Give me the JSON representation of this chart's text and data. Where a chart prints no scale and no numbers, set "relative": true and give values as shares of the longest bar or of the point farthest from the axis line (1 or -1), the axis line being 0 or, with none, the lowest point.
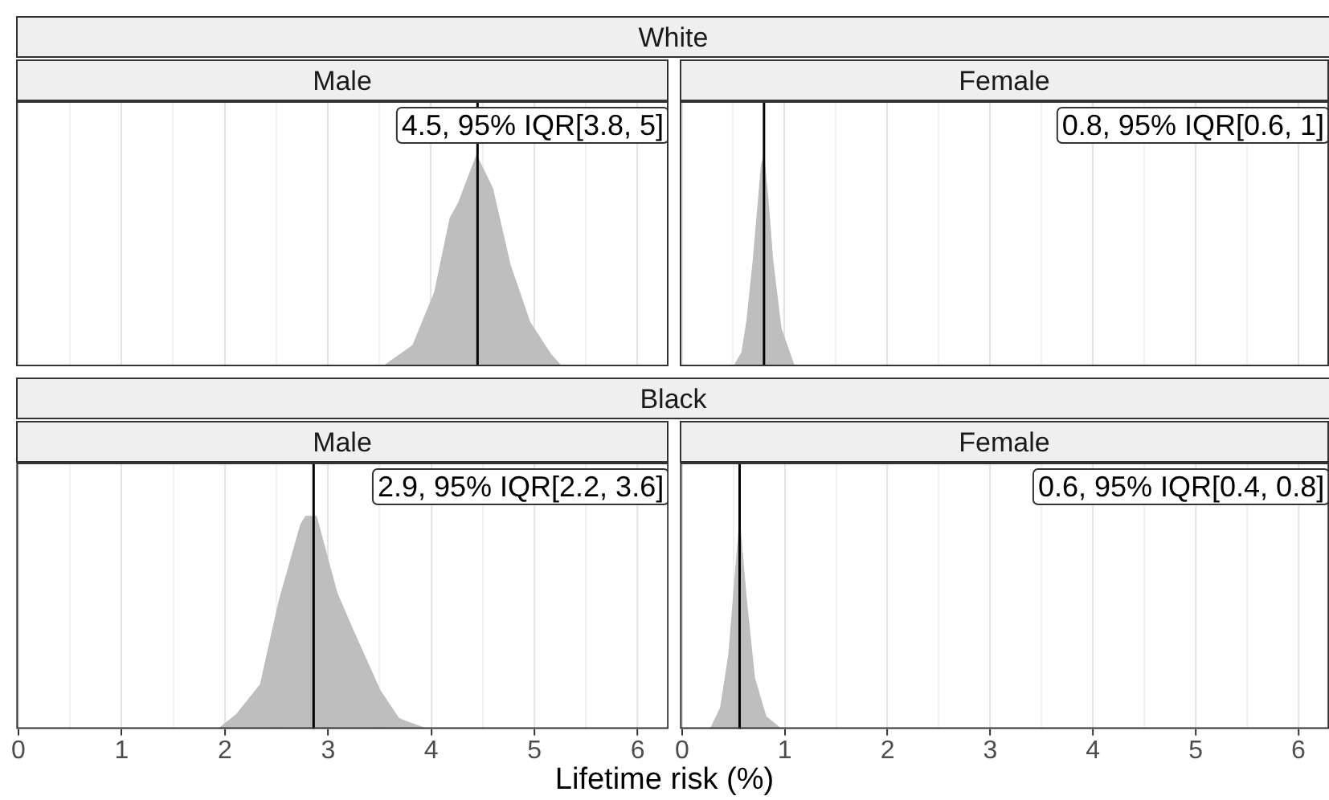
{
  "chart_data": [
    {
      "type": "area",
      "title": "White",
      "subtitle": "Male",
      "relative": true,
      "color": "#bebebe",
      "x": [
        3.53,
        3.82,
        4.03,
        4.18,
        4.26,
        4.44,
        4.6,
        4.77,
        4.96,
        5.16,
        5.27
      ],
      "values": [
        0,
        0.1,
        0.35,
        0.7,
        0.77,
        1,
        0.84,
        0.48,
        0.21,
        0.06,
        0
      ],
      "xlim": [
        -0.02,
        6.3
      ],
      "xticks": [
        0,
        {
          "value": 0.5,
          "label": null
        },
        1,
        {
          "value": 1.5,
          "label": null
        },
        2,
        {
          "value": 2.5,
          "label": null
        },
        3,
        {
          "value": 3.5,
          "label": null
        },
        4,
        {
          "value": 4.5,
          "label": null
        },
        5,
        {
          "value": 5.5,
          "label": null
        },
        6
      ],
      "grid": "x",
      "tick_labels": false,
      "ref_lines": [
        {
          "axis": "x",
          "value": 4.45,
          "label": "4.5, 95% IQR[3.8, 5]",
          "color": "#000000"
        }
      ]
    },
    {
      "type": "area",
      "subtitle": "Female",
      "relative": true,
      "color": "#bebebe",
      "x": [
        0.5,
        0.58,
        0.63,
        0.69,
        0.74,
        0.77,
        0.8,
        0.84,
        0.89,
        0.97,
        1.1
      ],
      "values": [
        0,
        0.065,
        0.22,
        0.5,
        0.78,
        0.95,
        1,
        0.81,
        0.5,
        0.18,
        0
      ],
      "xlim": [
        -0.02,
        6.3
      ],
      "xticks": [
        0,
        {
          "value": 0.5,
          "label": null
        },
        1,
        {
          "value": 1.5,
          "label": null
        },
        2,
        {
          "value": 2.5,
          "label": null
        },
        3,
        {
          "value": 3.5,
          "label": null
        },
        4,
        {
          "value": 4.5,
          "label": null
        },
        5,
        {
          "value": 5.5,
          "label": null
        },
        6
      ],
      "grid": "x",
      "tick_labels": false,
      "ref_lines": [
        {
          "axis": "x",
          "value": 0.8,
          "label": "0.8, 95% IQR[0.6, 1]",
          "color": "#000000"
        }
      ]
    },
    {
      "type": "area",
      "title": "Black",
      "subtitle": "Male",
      "xlabel": "Lifetime risk (%)",
      "relative": true,
      "color": "#bebebe",
      "x": [
        1.93,
        2.11,
        2.34,
        2.52,
        2.73,
        2.78,
        2.89,
        3.09,
        3.25,
        3.51,
        3.69,
        3.97
      ],
      "values": [
        0,
        0.07,
        0.21,
        0.6,
        0.96,
        1,
        1,
        0.64,
        0.46,
        0.18,
        0.05,
        0
      ],
      "xlim": [
        -0.02,
        6.3
      ],
      "xticks": [
        0,
        {
          "value": 0.5,
          "label": null
        },
        1,
        {
          "value": 1.5,
          "label": null
        },
        2,
        {
          "value": 2.5,
          "label": null
        },
        3,
        {
          "value": 3.5,
          "label": null
        },
        4,
        {
          "value": 4.5,
          "label": null
        },
        5,
        {
          "value": 5.5,
          "label": null
        },
        6
      ],
      "grid": "x",
      "tick_labels": "x",
      "ref_lines": [
        {
          "axis": "x",
          "value": 2.86,
          "label": "2.9, 95% IQR[2.2, 3.6]",
          "color": "#000000"
        }
      ]
    },
    {
      "type": "area",
      "subtitle": "Female",
      "relative": true,
      "color": "#bebebe",
      "x": [
        0.27,
        0.37,
        0.45,
        0.5,
        0.56,
        0.63,
        0.71,
        0.82,
        0.97
      ],
      "values": [
        0,
        0.1,
        0.35,
        0.65,
        1,
        0.61,
        0.24,
        0.06,
        0
      ],
      "xlim": [
        -0.02,
        6.3
      ],
      "xticks": [
        0,
        {
          "value": 0.5,
          "label": null
        },
        1,
        {
          "value": 1.5,
          "label": null
        },
        2,
        {
          "value": 2.5,
          "label": null
        },
        3,
        {
          "value": 3.5,
          "label": null
        },
        4,
        {
          "value": 4.5,
          "label": null
        },
        5,
        {
          "value": 5.5,
          "label": null
        },
        6
      ],
      "grid": "x",
      "tick_labels": "x",
      "ref_lines": [
        {
          "axis": "x",
          "value": 0.56,
          "label": "0.6, 95% IQR[0.4, 0.8]",
          "color": "#000000"
        }
      ]
    }
  ]
}
